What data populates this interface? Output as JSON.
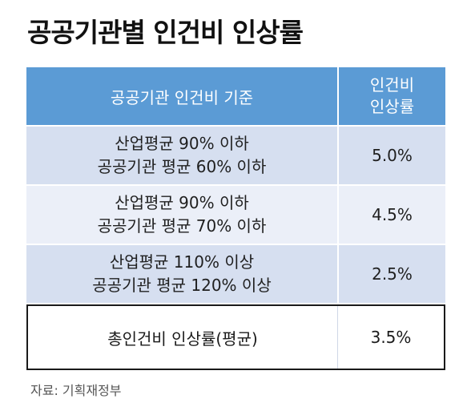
{
  "title": "공공기관별 인건비 인상률",
  "table": {
    "headers": {
      "criteria": "공공기관 인건비 기준",
      "rate_line1": "인건비",
      "rate_line2": "인상률"
    },
    "rows": [
      {
        "line1": "산업평균 90% 이하",
        "line2": "공공기관 평균 60% 이하",
        "rate": "5.0%"
      },
      {
        "line1": "산업평균 90% 이하",
        "line2": "공공기관 평균 70% 이하",
        "rate": "4.5%"
      },
      {
        "line1": "산업평균 110% 이상",
        "line2": "공공기관 평균 120% 이상",
        "rate": "2.5%"
      }
    ],
    "total": {
      "label": "총인건비 인상률(평균)",
      "rate": "3.5%"
    }
  },
  "source": "자료: 기획재정부",
  "colors": {
    "header_bg": "#5b9bd5",
    "row_dark": "#d6dff0",
    "row_light": "#ebeff8"
  }
}
